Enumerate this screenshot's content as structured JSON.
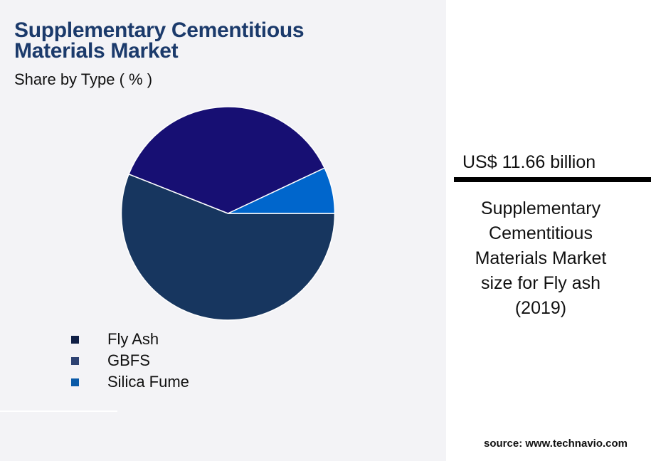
{
  "header": {
    "title_line1": "Supplementary Cementitious",
    "title_line2": "Materials Market",
    "subtitle": "Share by Type ( % )"
  },
  "chart_data": {
    "type": "pie",
    "title": "Supplementary Cementitious Materials Market",
    "subtitle": "Share by Type ( % )",
    "categories": [
      "Fly Ash",
      "GBFS",
      "Silica Fume"
    ],
    "values": [
      56,
      37,
      7
    ],
    "slice_colors": [
      "#17365f",
      "#170f73",
      "#0066cc"
    ],
    "legend_colors": [
      "#0f1f45",
      "#2d4272",
      "#0a5aa8"
    ],
    "legend": "bottom-left"
  },
  "panel": {
    "value": "US$ 11.66 billion",
    "description": [
      "Supplementary",
      "Cementitious",
      "Materials Market",
      "size for Fly ash",
      "(2019)"
    ],
    "source": "source: www.technavio.com"
  }
}
